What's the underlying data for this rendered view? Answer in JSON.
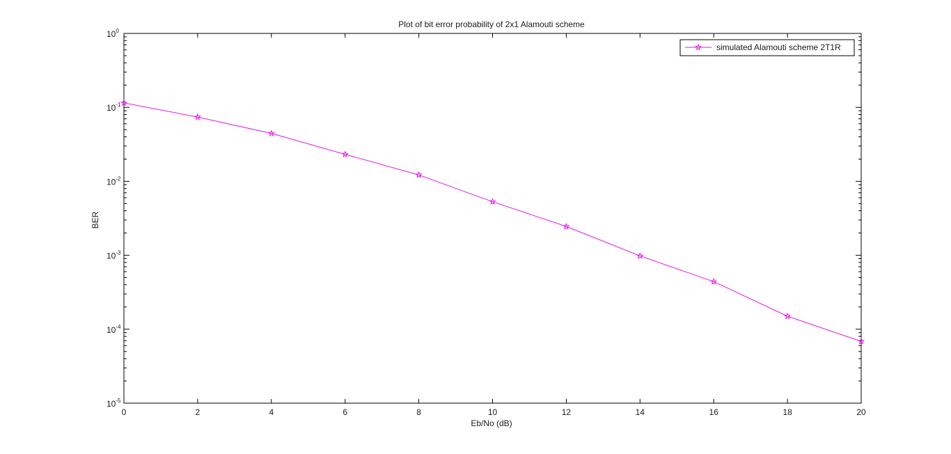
{
  "chart_data": {
    "type": "line",
    "title": "Plot of bit error probability of 2x1 Alamouti scheme",
    "xlabel": "Eb/No (dB)",
    "ylabel": "BER",
    "xlim": [
      0,
      20
    ],
    "ylim": [
      1e-05,
      1
    ],
    "yscale": "log",
    "grid": false,
    "legend_position": "top-right",
    "x_ticks": [
      "0",
      "2",
      "4",
      "6",
      "8",
      "10",
      "12",
      "14",
      "16",
      "18",
      "20"
    ],
    "y_ticks": [
      {
        "base": "10",
        "exp": "0"
      },
      {
        "base": "10",
        "exp": "-1"
      },
      {
        "base": "10",
        "exp": "-2"
      },
      {
        "base": "10",
        "exp": "-3"
      },
      {
        "base": "10",
        "exp": "-4"
      },
      {
        "base": "10",
        "exp": "-5"
      }
    ],
    "x": [
      0,
      2,
      4,
      6,
      8,
      10,
      12,
      14,
      16,
      18,
      20
    ],
    "series": [
      {
        "name": "simulated Alamouti scheme 2T1R",
        "color": "#e619e6",
        "marker": "star",
        "values": [
          0.115,
          0.074,
          0.0445,
          0.0232,
          0.0122,
          0.0053,
          0.00245,
          0.00098,
          0.00044,
          0.00015,
          6.85e-05
        ]
      }
    ]
  }
}
